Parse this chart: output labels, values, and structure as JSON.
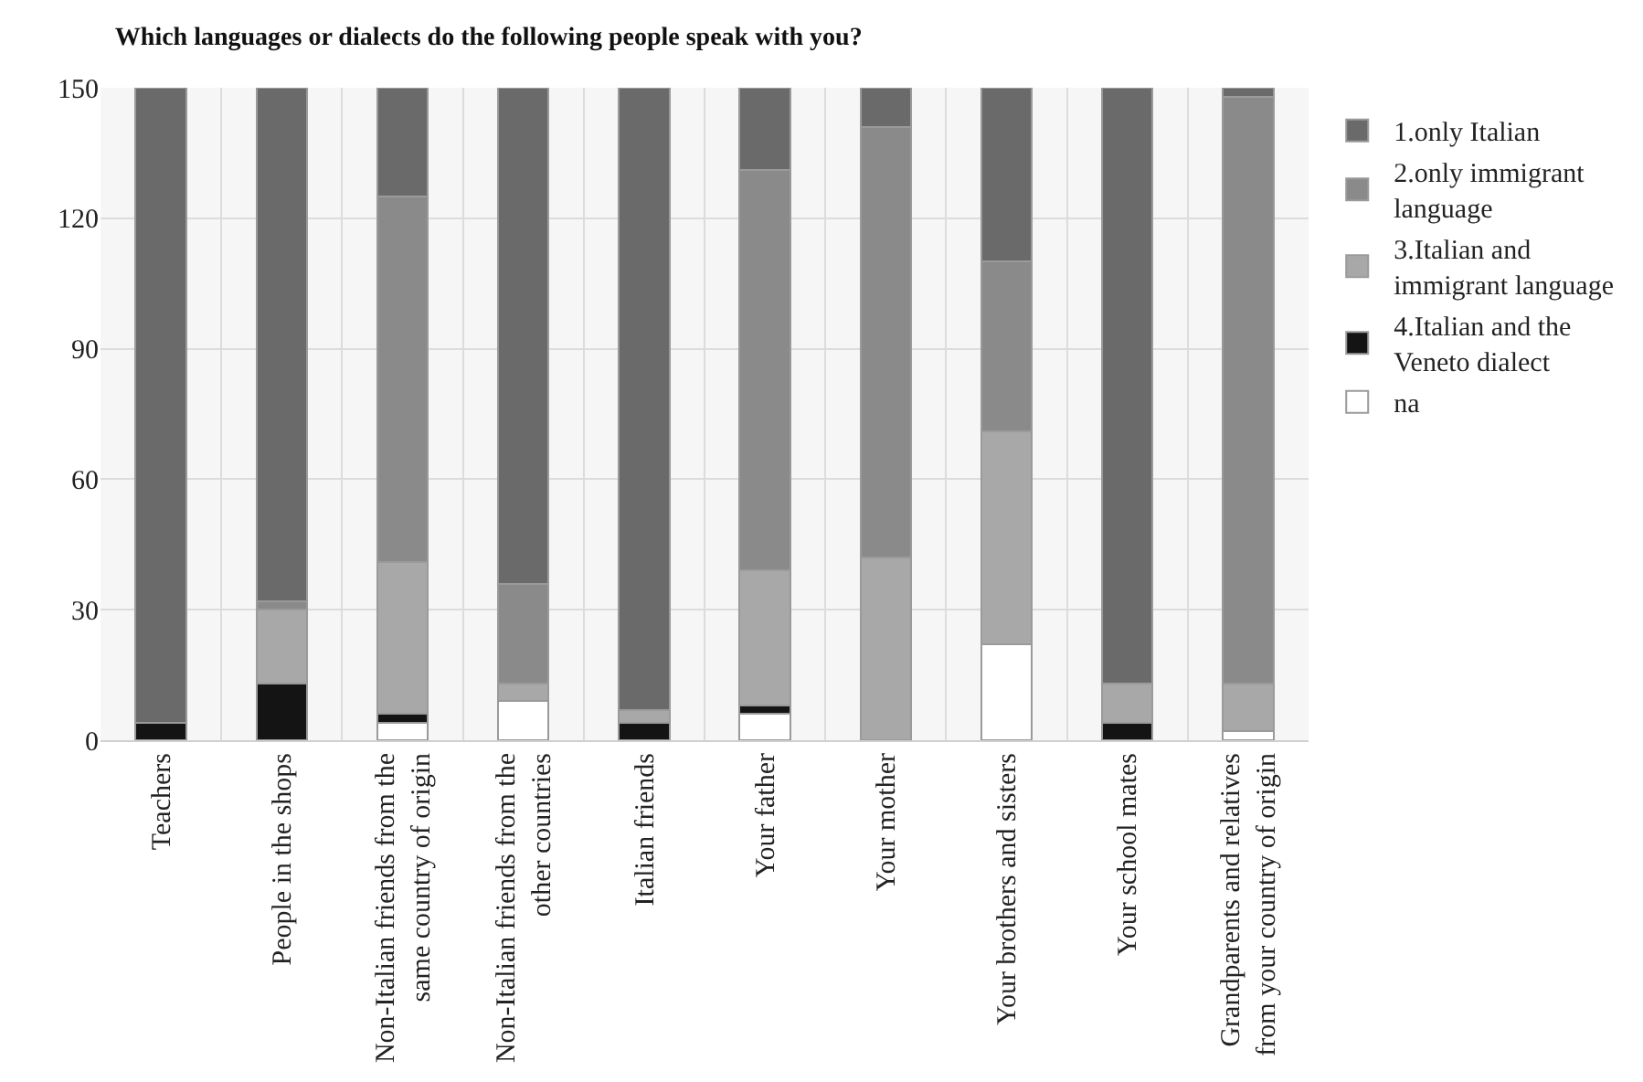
{
  "chart_data": {
    "type": "bar",
    "title": "Which languages or dialects do the following people speak with you?",
    "stacked": true,
    "categories": [
      "Teachers",
      "People in the shops",
      "Non-Italian friends from the same country of origin",
      "Non-Italian friends from the other countries",
      "Italian friends",
      "Your father",
      "Your mother",
      "Your brothers and sisters",
      "Your school mates",
      "Grandparents and relatives from your country of origin"
    ],
    "series": [
      {
        "name": "na",
        "color": "#ffffff",
        "values": [
          0,
          0,
          4,
          9,
          0,
          6,
          0,
          22,
          0,
          2
        ]
      },
      {
        "name": "4.Italian and the Veneto dialect",
        "color": "#141414",
        "values": [
          4,
          13,
          2,
          0,
          4,
          2,
          0,
          0,
          4,
          0
        ]
      },
      {
        "name": "3.Italian and immigrant language",
        "color": "#a8a8a8",
        "values": [
          0,
          17,
          35,
          4,
          3,
          31,
          42,
          49,
          9,
          11
        ]
      },
      {
        "name": "2.only immigrant language",
        "color": "#8a8a8a",
        "values": [
          0,
          2,
          84,
          23,
          0,
          92,
          99,
          39,
          0,
          135
        ]
      },
      {
        "name": "1.only Italian",
        "color": "#6a6a6a",
        "values": [
          146,
          118,
          25,
          114,
          143,
          19,
          9,
          40,
          137,
          2
        ]
      }
    ],
    "ylim": [
      0,
      150
    ],
    "yticks": [
      0,
      30,
      60,
      90,
      120,
      150
    ],
    "grid": true,
    "legend": "right"
  }
}
